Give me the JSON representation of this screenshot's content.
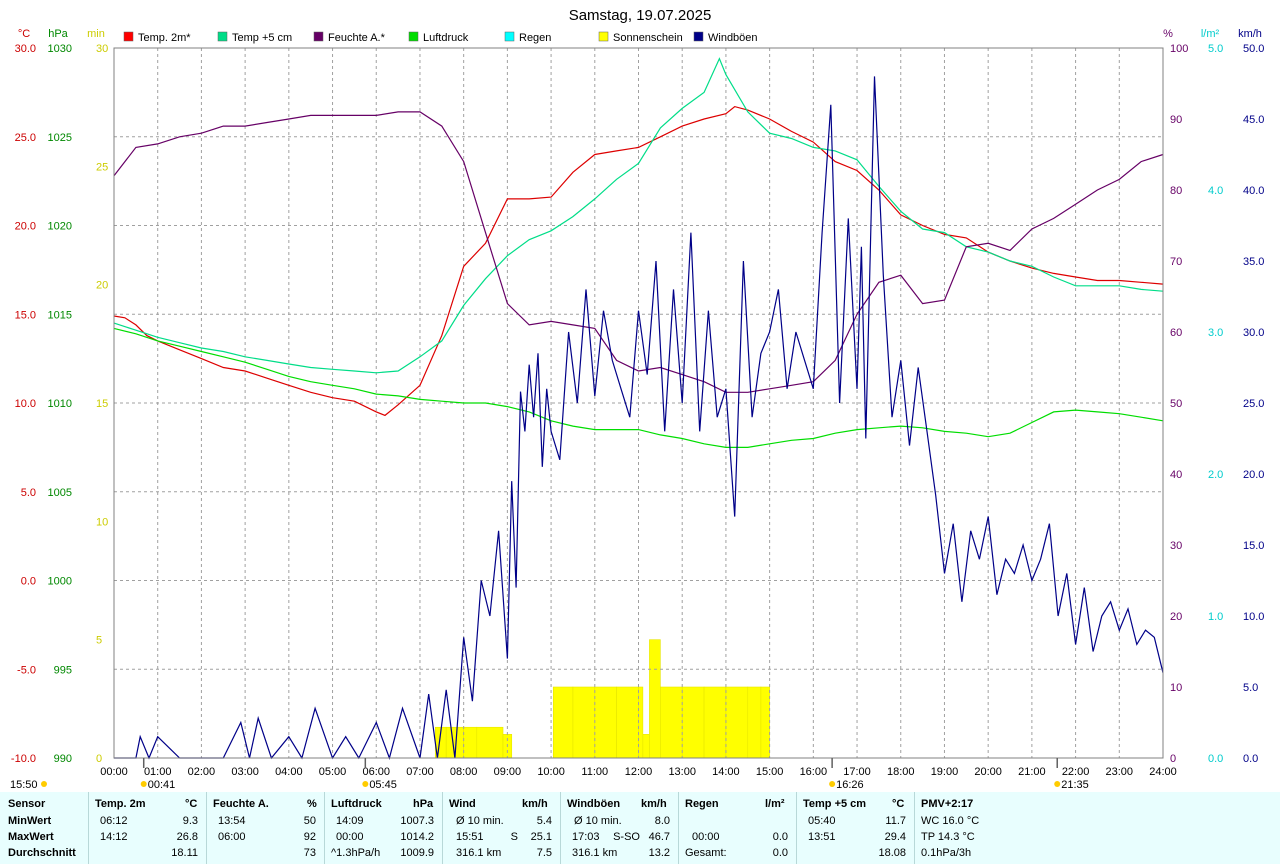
{
  "chart_data": {
    "type": "line",
    "title": "Samstag, 19.07.2025",
    "x_ticks": [
      "00:00",
      "01:00",
      "02:00",
      "03:00",
      "04:00",
      "05:00",
      "06:00",
      "07:00",
      "08:00",
      "09:00",
      "10:00",
      "11:00",
      "12:00",
      "13:00",
      "14:00",
      "15:00",
      "16:00",
      "17:00",
      "18:00",
      "19:00",
      "20:00",
      "21:00",
      "22:00",
      "23:00",
      "24:00"
    ],
    "axes": {
      "temp_c": {
        "unit": "°C",
        "range": [
          -10,
          30
        ],
        "ticks": [
          "30.0",
          "25.0",
          "20.0",
          "15.0",
          "10.0",
          "5.0",
          "0.0",
          "-5.0",
          "-10.0"
        ],
        "color": "#cc0000"
      },
      "pressure": {
        "unit": "hPa",
        "range": [
          990,
          1030
        ],
        "ticks": [
          "1030",
          "1025",
          "1020",
          "1015",
          "1010",
          "1005",
          "1000",
          "995",
          "990"
        ],
        "color": "#008800"
      },
      "minutes": {
        "unit": "min",
        "range": [
          0,
          30
        ],
        "ticks": [
          "30",
          "25",
          "20",
          "15",
          "10",
          "5",
          "0"
        ],
        "color": "#cccc00"
      },
      "humidity": {
        "unit": "%",
        "range": [
          0,
          100
        ],
        "ticks": [
          "100",
          "90",
          "80",
          "70",
          "60",
          "50",
          "40",
          "30",
          "20",
          "10",
          "0"
        ],
        "color": "#660066"
      },
      "rain": {
        "unit": "l/m²",
        "range": [
          0,
          5
        ],
        "ticks": [
          "5.0",
          "4.0",
          "3.0",
          "2.0",
          "1.0",
          "0.0"
        ],
        "color": "#00cccc"
      },
      "wind": {
        "unit": "km/h",
        "range": [
          0,
          50
        ],
        "ticks": [
          "50.0",
          "45.0",
          "40.0",
          "35.0",
          "30.0",
          "25.0",
          "20.0",
          "15.0",
          "10.0",
          "5.0",
          "0.0"
        ],
        "color": "#000088"
      }
    },
    "legend": [
      {
        "label": "Temp. 2m*",
        "color": "#ff0000"
      },
      {
        "label": "Temp +5 cm",
        "color": "#00dd88"
      },
      {
        "label": "Feuchte A.*",
        "color": "#660066"
      },
      {
        "label": "Luftdruck",
        "color": "#00dd00"
      },
      {
        "label": "Regen",
        "color": "#00ffff"
      },
      {
        "label": "Sonnenschein",
        "color": "#ffff00"
      },
      {
        "label": "Windböen",
        "color": "#000088"
      }
    ],
    "series": [
      {
        "name": "Temp. 2m*",
        "axis": "temp_c",
        "color": "#dd0000",
        "x": [
          0,
          0.25,
          0.5,
          0.75,
          1,
          1.5,
          2,
          2.5,
          3,
          3.5,
          4,
          4.5,
          5,
          5.5,
          6,
          6.2,
          6.5,
          7,
          7.5,
          8,
          8.5,
          9,
          9.5,
          10,
          10.5,
          11,
          11.5,
          12,
          12.5,
          13,
          13.5,
          14,
          14.2,
          14.5,
          15,
          15.5,
          16,
          16.5,
          17,
          17.5,
          18,
          18.5,
          19,
          19.5,
          20,
          20.5,
          21,
          21.5,
          22,
          22.5,
          23,
          23.5,
          24
        ],
        "y": [
          14.9,
          14.8,
          14.4,
          13.8,
          13.5,
          13.0,
          12.5,
          12.0,
          11.8,
          11.4,
          11.0,
          10.6,
          10.3,
          10.1,
          9.5,
          9.3,
          9.9,
          11.0,
          13.8,
          17.7,
          19.0,
          21.5,
          21.5,
          21.6,
          23.0,
          24.0,
          24.2,
          24.4,
          25.0,
          25.6,
          26.0,
          26.3,
          26.7,
          26.5,
          26.0,
          25.3,
          24.7,
          23.6,
          23.1,
          22.0,
          20.6,
          20.0,
          19.5,
          19.3,
          18.5,
          18.0,
          17.6,
          17.3,
          17.1,
          16.9,
          16.9,
          16.8,
          16.7
        ]
      },
      {
        "name": "Temp +5 cm",
        "axis": "temp_c",
        "color": "#00dd88",
        "x": [
          0,
          0.5,
          1,
          1.5,
          2,
          2.5,
          3,
          3.5,
          4,
          4.5,
          5,
          5.5,
          6,
          6.5,
          7,
          7.5,
          8,
          8.5,
          9,
          9.5,
          10,
          10.5,
          11,
          11.5,
          12,
          12.5,
          13,
          13.5,
          13.85,
          14,
          14.5,
          15,
          15.5,
          16,
          16.5,
          17,
          17.5,
          18,
          18.5,
          19,
          19.5,
          20,
          20.5,
          21,
          21.5,
          22,
          22.5,
          23,
          23.5,
          24
        ],
        "y": [
          14.5,
          14.1,
          13.7,
          13.4,
          13.1,
          12.9,
          12.6,
          12.4,
          12.2,
          12.0,
          11.9,
          11.8,
          11.7,
          11.8,
          12.6,
          13.5,
          15.5,
          17.0,
          18.3,
          19.2,
          19.7,
          20.5,
          21.5,
          22.6,
          23.5,
          25.5,
          26.6,
          27.5,
          29.4,
          28.5,
          26.4,
          25.2,
          24.9,
          24.4,
          24.2,
          23.7,
          22.2,
          20.8,
          19.8,
          19.6,
          18.8,
          18.5,
          18.0,
          17.7,
          17.1,
          16.6,
          16.6,
          16.6,
          16.4,
          16.3
        ]
      },
      {
        "name": "Feuchte A.*",
        "axis": "humidity",
        "color": "#660066",
        "x": [
          0,
          0.5,
          1,
          1.5,
          2,
          2.5,
          3,
          3.5,
          4,
          4.5,
          5,
          5.5,
          6,
          6.5,
          7,
          7.5,
          8,
          8.5,
          9,
          9.5,
          10,
          10.5,
          11,
          11.5,
          12,
          12.5,
          13,
          13.5,
          14,
          14.5,
          15,
          15.5,
          16,
          16.5,
          17,
          17.5,
          18,
          18.5,
          19,
          19.5,
          20,
          20.5,
          21,
          21.5,
          22,
          22.5,
          23,
          23.5,
          24
        ],
        "y": [
          82,
          86,
          86.5,
          87.5,
          88,
          89,
          89,
          89.5,
          90,
          90.5,
          90.5,
          90.5,
          90.5,
          91,
          91,
          89,
          84,
          74,
          64,
          61,
          61.5,
          61,
          60.5,
          56,
          54.5,
          55,
          54,
          53,
          51.5,
          51.5,
          52,
          52.5,
          53,
          56,
          62.5,
          67,
          68,
          64,
          64.5,
          72,
          72.5,
          71.5,
          74.5,
          76,
          78,
          80,
          81.5,
          84,
          85
        ]
      },
      {
        "name": "Luftdruck",
        "axis": "pressure",
        "color": "#00dd00",
        "x": [
          0,
          0.5,
          1,
          1.5,
          2,
          2.5,
          3,
          3.5,
          4,
          4.5,
          5,
          5.5,
          6,
          6.5,
          7,
          7.5,
          8,
          8.5,
          9,
          9.5,
          10,
          10.5,
          11,
          11.5,
          12,
          12.5,
          13,
          13.5,
          14,
          14.5,
          15,
          15.5,
          16,
          16.5,
          17,
          17.5,
          18,
          18.5,
          19,
          19.5,
          20,
          20.5,
          21,
          21.5,
          22,
          22.5,
          23,
          23.5,
          24
        ],
        "y": [
          1014.2,
          1013.9,
          1013.5,
          1013.2,
          1012.9,
          1012.6,
          1012.3,
          1011.9,
          1011.5,
          1011.2,
          1011.0,
          1010.8,
          1010.5,
          1010.4,
          1010.2,
          1010.1,
          1010.0,
          1010.0,
          1009.8,
          1009.5,
          1009.0,
          1008.7,
          1008.5,
          1008.5,
          1008.5,
          1008.2,
          1008.0,
          1007.7,
          1007.5,
          1007.5,
          1007.7,
          1007.9,
          1008.0,
          1008.3,
          1008.5,
          1008.6,
          1008.7,
          1008.6,
          1008.4,
          1008.3,
          1008.1,
          1008.3,
          1008.9,
          1009.5,
          1009.6,
          1009.5,
          1009.4,
          1009.2,
          1009.0
        ]
      }
    ],
    "sunshine": {
      "axis": "minutes",
      "color": "#ffff00",
      "x": [
        7.35,
        7.6,
        8,
        8.3,
        8.9,
        9.1,
        10.05,
        10.5,
        11,
        11.5,
        12,
        12.1,
        12.25,
        12.5,
        13,
        13.5,
        14,
        14.5,
        14.8,
        15.0
      ],
      "y": [
        1.3,
        1.3,
        1.3,
        1.3,
        1.0,
        1.0,
        3.0,
        3.0,
        3.0,
        3.0,
        3.0,
        1.0,
        5.0,
        3.0,
        3.0,
        3.0,
        3.0,
        3.0,
        3.0,
        3.0
      ]
    },
    "wind_gusts": {
      "axis": "wind",
      "color": "#000088",
      "x": [
        0,
        0.5,
        0.6,
        0.8,
        1,
        1.5,
        2,
        2.5,
        2.9,
        3.1,
        3.3,
        3.6,
        4,
        4.3,
        4.6,
        5,
        5.3,
        5.6,
        6,
        6.3,
        6.6,
        7,
        7.2,
        7.4,
        7.6,
        7.8,
        8,
        8.2,
        8.4,
        8.6,
        8.8,
        9,
        9.1,
        9.2,
        9.3,
        9.4,
        9.5,
        9.6,
        9.7,
        9.8,
        9.9,
        10,
        10.2,
        10.4,
        10.6,
        10.8,
        11,
        11.2,
        11.4,
        11.6,
        11.8,
        12,
        12.2,
        12.4,
        12.6,
        12.8,
        13,
        13.2,
        13.4,
        13.6,
        13.8,
        14,
        14.2,
        14.4,
        14.6,
        14.8,
        15,
        15.2,
        15.4,
        15.6,
        15.8,
        16,
        16.2,
        16.4,
        16.6,
        16.8,
        17,
        17.1,
        17.2,
        17.4,
        17.6,
        17.8,
        18,
        18.2,
        18.4,
        18.6,
        18.8,
        19,
        19.2,
        19.4,
        19.6,
        19.8,
        20,
        20.2,
        20.4,
        20.6,
        20.8,
        21,
        21.2,
        21.4,
        21.6,
        21.8,
        22,
        22.2,
        22.4,
        22.6,
        22.8,
        23,
        23.2,
        23.4,
        23.6,
        23.8,
        24
      ],
      "y": [
        0,
        0,
        1.5,
        0,
        1.5,
        0,
        0,
        0,
        2.5,
        0,
        2.8,
        0,
        1.5,
        0,
        3.5,
        0,
        1.5,
        0,
        2.5,
        0,
        3.5,
        0,
        4.5,
        0,
        4.8,
        0,
        8.5,
        4.0,
        12.5,
        10.0,
        16.0,
        7.0,
        19.5,
        12.0,
        25.8,
        23.0,
        27.7,
        24.0,
        28.5,
        20.5,
        26.0,
        23.0,
        21.0,
        30.0,
        25.0,
        33.0,
        25.5,
        31.5,
        28.0,
        26.0,
        24.0,
        31.5,
        27.0,
        35.0,
        23.0,
        33.0,
        25.0,
        37.0,
        23.0,
        31.5,
        24.0,
        26.0,
        17.0,
        35.0,
        24.0,
        28.5,
        30.0,
        33.0,
        26.0,
        30.0,
        28.0,
        26.0,
        37.0,
        46.0,
        25.0,
        38.0,
        26.0,
        36.0,
        22.5,
        48.0,
        34.0,
        24.0,
        28.0,
        22.0,
        27.5,
        23.0,
        18.5,
        13.0,
        16.5,
        11.0,
        16.0,
        14.0,
        17.0,
        11.5,
        14.0,
        13.0,
        15.0,
        12.5,
        14.0,
        16.5,
        10.0,
        13.0,
        8.0,
        12.0,
        7.5,
        10.0,
        11.0,
        9.0,
        10.5,
        8.0,
        9.0,
        8.5,
        6.0
      ]
    },
    "markers": [
      {
        "label": "00:41",
        "x": 0.68
      },
      {
        "label": "05:45",
        "x": 5.75
      },
      {
        "label": "16:26",
        "x": 16.43
      },
      {
        "label": "21:35",
        "x": 21.58
      }
    ],
    "bottom_left_time": "15:50",
    "grid": true
  },
  "stats": {
    "headers": [
      {
        "label": "Sensor"
      },
      {
        "label": "Temp. 2m",
        "unit": "°C"
      },
      {
        "label": "Feuchte A.",
        "unit": "%"
      },
      {
        "label": "Luftdruck",
        "unit": "hPa"
      },
      {
        "label": "Wind",
        "unit": "km/h"
      },
      {
        "label": "Windböen",
        "unit": "km/h"
      },
      {
        "label": "Regen",
        "unit": "l/m²"
      },
      {
        "label": "Temp +5 cm",
        "unit": "°C"
      },
      {
        "label": "PMV+2:17"
      }
    ],
    "rows": [
      {
        "label": "MinWert",
        "temp_time": "06:12",
        "temp": "9.3",
        "hum_time": "13:54",
        "hum": "50",
        "pres_time": "14:09",
        "pres": "1007.3",
        "wind_desc": "Ø 10 min.",
        "wind": "5.4",
        "gust_desc": "Ø 10 min.",
        "gust": "8.0",
        "rain_desc": "",
        "rain": "",
        "t5_time": "05:40",
        "t5": "11.7",
        "pmv": "WC 16.0 °C"
      },
      {
        "label": "MaxWert",
        "temp_time": "14:12",
        "temp": "26.8",
        "hum_time": "06:00",
        "hum": "92",
        "pres_time": "00:00",
        "pres": "1014.2",
        "wind_desc": "15:51",
        "wind_dir": "S",
        "wind": "25.1",
        "gust_desc": "17:03",
        "gust_dir": "S-SO",
        "gust": "46.7",
        "rain_desc": "00:00",
        "rain": "0.0",
        "t5_time": "13:51",
        "t5": "29.4",
        "pmv": "TP 14.3 °C"
      },
      {
        "label": "Durchschnitt",
        "temp_time": "",
        "temp": "18.11",
        "hum_time": "",
        "hum": "73",
        "pres_time": "^1.3hPa/h",
        "pres": "1009.9",
        "wind_desc": "316.1 km",
        "wind": "7.5",
        "gust_desc": "316.1 km",
        "gust": "13.2",
        "rain_desc": "Gesamt:",
        "rain": "0.0",
        "t5_time": "",
        "t5": "18.08",
        "pmv": "0.1hPa/3h"
      }
    ]
  }
}
